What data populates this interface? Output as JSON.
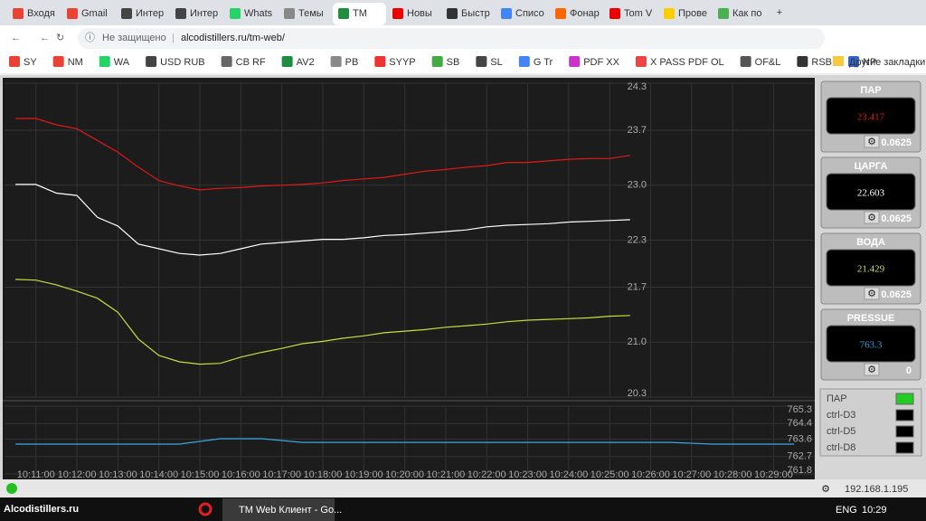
{
  "browser": {
    "tabs": [
      "Входя",
      "Gmail",
      "Интер",
      "Интер",
      "Whats",
      "Темы",
      "TM",
      "Новы",
      "Быстр",
      "Списо",
      "Фонар",
      "Tom V",
      "Прове",
      "Как по"
    ],
    "security": "Не защищено",
    "url": "alcodistillers.ru/tm-web/",
    "bookmarks": [
      "SY",
      "NM",
      "WA",
      "USD RUB",
      "CB RF",
      "AV2",
      "PB",
      "SYYP",
      "SB",
      "SL",
      "G Tr",
      "PDF XX",
      "X PASS PDF OL",
      "OF&L",
      "RSB",
      "NP"
    ],
    "other_bookmarks": "Другие закладки"
  },
  "temperature_chart": {
    "type": "line",
    "x": [
      "10:10:30",
      "10:11:00",
      "10:11:30",
      "10:12:00",
      "10:12:30",
      "10:13:00",
      "10:13:30",
      "10:14:00",
      "10:14:30",
      "10:15:00",
      "10:15:30",
      "10:16:00",
      "10:16:30",
      "10:17:00",
      "10:17:30",
      "10:18:00",
      "10:18:30",
      "10:19:00",
      "10:19:30",
      "10:20:00",
      "10:20:30",
      "10:21:00",
      "10:21:30",
      "10:22:00",
      "10:22:30",
      "10:23:00",
      "10:23:30",
      "10:24:00",
      "10:24:30",
      "10:25:00",
      "10:25:30"
    ],
    "series": [
      {
        "color": "#e01818",
        "values": [
          23.85,
          23.85,
          23.77,
          23.72,
          23.57,
          23.42,
          23.23,
          23.06,
          22.99,
          22.94,
          22.96,
          22.97,
          22.99,
          23.0,
          23.01,
          23.03,
          23.06,
          23.08,
          23.1,
          23.14,
          23.18,
          23.2,
          23.23,
          23.25,
          23.29,
          23.29,
          23.31,
          23.33,
          23.34,
          23.34,
          23.38
        ]
      },
      {
        "color": "#ffffff",
        "values": [
          23.01,
          23.01,
          22.9,
          22.87,
          22.59,
          22.48,
          22.25,
          22.19,
          22.13,
          22.11,
          22.13,
          22.19,
          22.25,
          22.27,
          22.29,
          22.31,
          22.31,
          22.33,
          22.36,
          22.37,
          22.39,
          22.41,
          22.43,
          22.47,
          22.49,
          22.5,
          22.51,
          22.53,
          22.54,
          22.55,
          22.56
        ]
      },
      {
        "color": "#c8dc3c",
        "values": [
          21.8,
          21.79,
          21.73,
          21.65,
          21.56,
          21.38,
          21.04,
          20.83,
          20.75,
          20.72,
          20.73,
          20.81,
          20.87,
          20.92,
          20.98,
          21.01,
          21.05,
          21.08,
          21.12,
          21.14,
          21.16,
          21.19,
          21.21,
          21.23,
          21.26,
          21.28,
          21.29,
          21.3,
          21.31,
          21.33,
          21.34
        ]
      }
    ],
    "xlim": [
      "10:10:14",
      "10:29:59"
    ],
    "ylim": [
      20.3,
      24.3
    ],
    "yticks": [
      24.3,
      23.7,
      {
        "value": 23,
        "label": "23.0"
      },
      22.3,
      21.7,
      {
        "value": 21,
        "label": "21.0"
      },
      20.3
    ],
    "grid": true
  },
  "pressure_chart": {
    "type": "line",
    "x": [
      "10:10:30",
      "10:11:30",
      "10:12:30",
      "10:13:30",
      "10:14:30",
      "10:15:30",
      "10:16:30",
      "10:17:30",
      "10:18:30",
      "10:19:30",
      "10:20:30",
      "10:21:30",
      "10:22:30",
      "10:23:30",
      "10:24:30",
      "10:25:30",
      "10:26:30",
      "10:27:30",
      "10:28:30",
      "10:29:30"
    ],
    "series": [
      {
        "color": "#3aa6e0",
        "values": [
          763.34,
          763.34,
          763.34,
          763.34,
          763.34,
          763.62,
          763.62,
          763.43,
          763.43,
          763.43,
          763.43,
          763.43,
          763.43,
          763.43,
          763.43,
          763.43,
          763.43,
          763.34,
          763.34,
          763.34
        ]
      }
    ],
    "xlim": [
      "10:10:14",
      "10:29:59"
    ],
    "xticks": [
      "10:11:00",
      "10:12:00",
      "10:13:00",
      "10:14:00",
      "10:15:00",
      "10:16:00",
      "10:17:00",
      "10:18:00",
      "10:19:00",
      "10:20:00",
      "10:21:00",
      "10:22:00",
      "10:23:00",
      "10:24:00",
      "10:25:00",
      "10:26:00",
      "10:27:00",
      "10:28:00",
      "10:29:00"
    ],
    "ylim": [
      761.8,
      765.3
    ],
    "yticks": [
      765.3,
      764.4,
      763.6,
      762.7,
      761.8
    ],
    "grid": true
  },
  "gauges": [
    {
      "name": "ПАР",
      "value": 23.417,
      "step": 0.0625,
      "color": "#e01818"
    },
    {
      "name": "ЦАРГА",
      "value": 22.603,
      "step": 0.0625,
      "color": "#ffffff"
    },
    {
      "name": "ВОДА",
      "value": 21.429,
      "step": 0.0625,
      "color": "#c8e048"
    },
    {
      "name": "PRESSUE",
      "value": 763.3,
      "step": 0,
      "color": "#2aa0e0"
    }
  ],
  "legend": [
    {
      "label": "ПАР",
      "color": "#22cc22"
    },
    {
      "label": "ctrl-D3",
      "color": "#000000"
    },
    {
      "label": "ctrl-D5",
      "color": "#000000"
    },
    {
      "label": "ctrl-D8",
      "color": "#000000"
    }
  ],
  "status": {
    "ip": "192.168.1.195"
  },
  "taskbar": {
    "watermark": "Alcodistillers.ru",
    "window": "TM Web Клиент - Go...",
    "language": "ENG",
    "time": "10:29"
  }
}
